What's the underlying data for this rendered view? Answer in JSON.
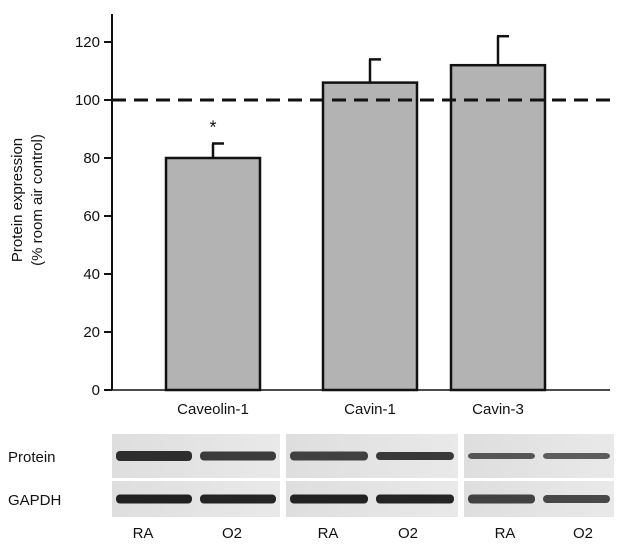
{
  "chart_data": {
    "type": "bar",
    "ylabel_line1": "Protein expression",
    "ylabel_line2": "(% room air control)",
    "categories": [
      "Caveolin-1",
      "Cavin-1",
      "Cavin-3"
    ],
    "values": [
      80,
      106,
      112
    ],
    "errors": [
      5,
      8,
      10
    ],
    "significance": [
      "*",
      "",
      ""
    ],
    "reference_line": 100,
    "yticks": [
      "0",
      "20",
      "40",
      "60",
      "80",
      "100",
      "120"
    ],
    "ylim": [
      0,
      135
    ],
    "bar_color": "#b3b3b3",
    "grid": false
  },
  "blot": {
    "row_labels": [
      "Protein",
      "GAPDH"
    ],
    "lane_labels": [
      "RA",
      "O2",
      "RA",
      "O2",
      "RA",
      "O2"
    ]
  }
}
